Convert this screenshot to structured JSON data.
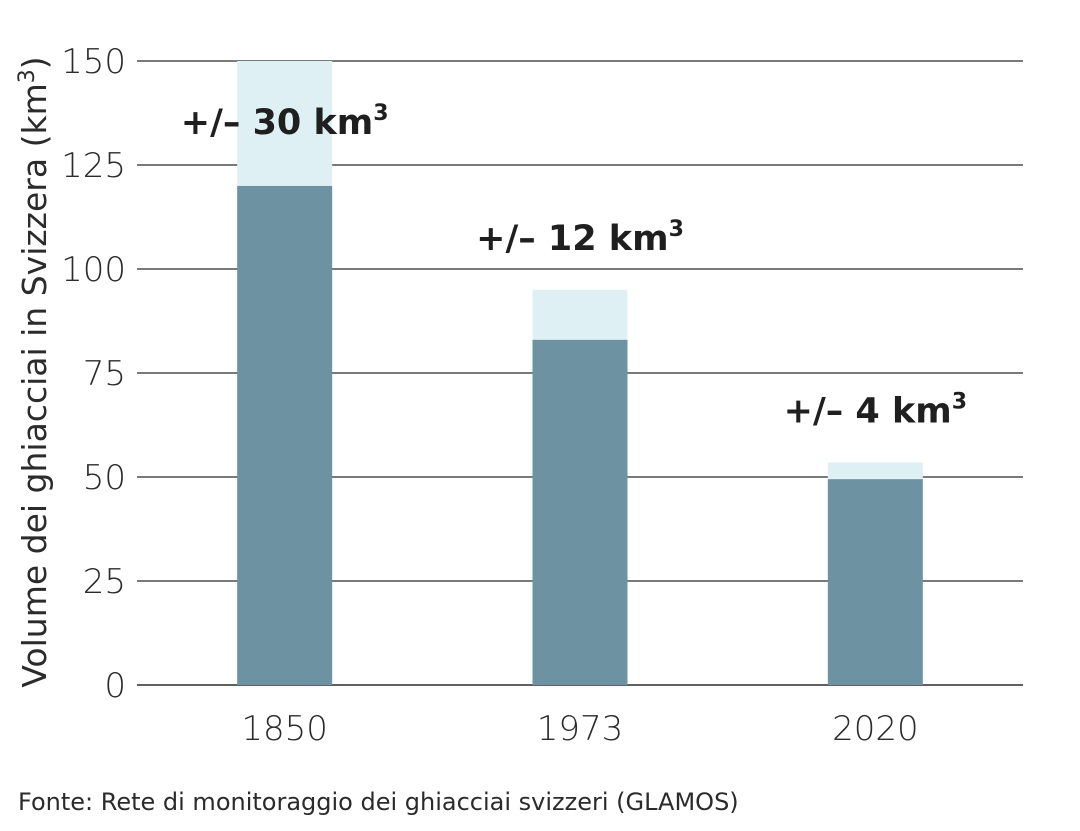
{
  "chart_data": {
    "type": "bar",
    "categories": [
      "1850",
      "1973",
      "2020"
    ],
    "series": [
      {
        "values": [
          120,
          83,
          49.5
        ]
      },
      {
        "values": [
          30,
          12,
          4
        ]
      }
    ],
    "stacked": true,
    "annotations": [
      "+/– 30 km",
      "+/– 12 km",
      "+/– 4 km"
    ],
    "annotation_superscript": "3",
    "ylabel": "Volume dei ghiacciai in Svizzera (km",
    "ylabel_superscript": "3",
    "ylabel_close": ")",
    "ylim": [
      0,
      150
    ],
    "yticks": [
      0,
      25,
      50,
      75,
      100,
      125,
      150
    ],
    "grid": true,
    "colors": {
      "value": "#6d93a3",
      "uncertainty": "#dff0f4",
      "grid": "#2b2b2b"
    }
  },
  "source": "Fonte: Rete di monitoraggio dei ghiacciai svizzeri (GLAMOS)"
}
